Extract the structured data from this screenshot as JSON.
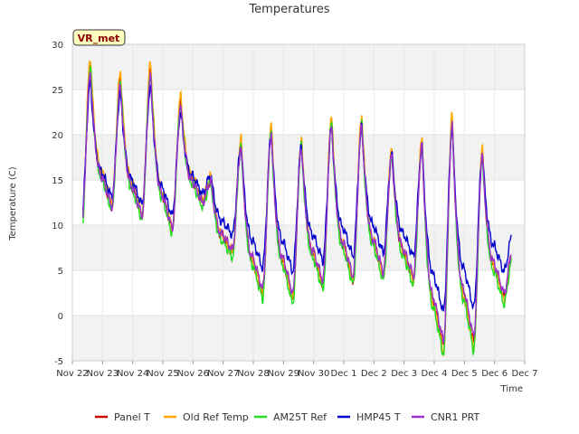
{
  "chart_data": {
    "type": "line",
    "title": "Temperatures",
    "xlabel": "Time",
    "ylabel": "Temperature (C)",
    "ylim": [
      -5,
      30
    ],
    "yticks": [
      -5,
      0,
      5,
      10,
      15,
      20,
      25,
      30
    ],
    "xlim": [
      0,
      15
    ],
    "x_unit": "days since Nov 22",
    "xticks": [
      {
        "value": 0,
        "label": "Nov 22"
      },
      {
        "value": 1,
        "label": "Nov 23"
      },
      {
        "value": 2,
        "label": "Nov 24"
      },
      {
        "value": 3,
        "label": "Nov 25"
      },
      {
        "value": 4,
        "label": "Nov 26"
      },
      {
        "value": 5,
        "label": "Nov 27"
      },
      {
        "value": 6,
        "label": "Nov 28"
      },
      {
        "value": 7,
        "label": "Nov 29"
      },
      {
        "value": 8,
        "label": "Nov 30"
      },
      {
        "value": 9,
        "label": "Dec 1"
      },
      {
        "value": 10,
        "label": "Dec 2"
      },
      {
        "value": 11,
        "label": "Dec 3"
      },
      {
        "value": 12,
        "label": "Dec 4"
      },
      {
        "value": 13,
        "label": "Dec 5"
      },
      {
        "value": 14,
        "label": "Dec 6"
      },
      {
        "value": 15,
        "label": "Dec 7"
      }
    ],
    "annotation": "VR_met",
    "grid": true,
    "legend_position": "bottom",
    "series": [
      {
        "name": "Panel T",
        "color": "#cc0000",
        "offset": 0.0,
        "amp_scale": 1.0
      },
      {
        "name": "Old Ref Temp",
        "color": "#ffa500",
        "offset": 0.15,
        "amp_scale": 1.06
      },
      {
        "name": "AM25T Ref",
        "color": "#22dd22",
        "offset": -0.5,
        "amp_scale": 1.03
      },
      {
        "name": "HMP45 T",
        "color": "#0000cc",
        "offset": 1.4,
        "amp_scale": 0.82
      },
      {
        "name": "CNR1 PRT",
        "color": "#9933cc",
        "offset": 0.1,
        "amp_scale": 0.96
      }
    ],
    "daily_pattern": {
      "description": "Approximate daily minimum and maximum of the reference (Panel T) series",
      "days": [
        {
          "day": 0.0,
          "min": 9.5,
          "max": 27.5
        },
        {
          "day": 1.0,
          "min": 12.0,
          "max": 26.0
        },
        {
          "day": 2.0,
          "min": 11.0,
          "max": 27.0
        },
        {
          "day": 3.0,
          "min": 9.5,
          "max": 23.5
        },
        {
          "day": 4.0,
          "min": 12.5,
          "max": 15.0
        },
        {
          "day": 5.0,
          "min": 7.0,
          "max": 19.0
        },
        {
          "day": 6.0,
          "min": 2.5,
          "max": 20.5
        },
        {
          "day": 7.0,
          "min": 2.0,
          "max": 19.0
        },
        {
          "day": 8.0,
          "min": 3.5,
          "max": 21.5
        },
        {
          "day": 9.0,
          "min": 4.0,
          "max": 21.5
        },
        {
          "day": 10.0,
          "min": 4.5,
          "max": 18.0
        },
        {
          "day": 11.0,
          "min": 4.0,
          "max": 19.0
        },
        {
          "day": 12.0,
          "min": -3.5,
          "max": 21.5
        },
        {
          "day": 13.0,
          "min": -3.0,
          "max": 18.0
        },
        {
          "day": 14.0,
          "min": 2.0,
          "max": 7.0
        }
      ],
      "first_day_start": 10.5,
      "last_day_end": 2.0,
      "series_start_day": 0.35,
      "series_end_day": 14.55
    }
  }
}
